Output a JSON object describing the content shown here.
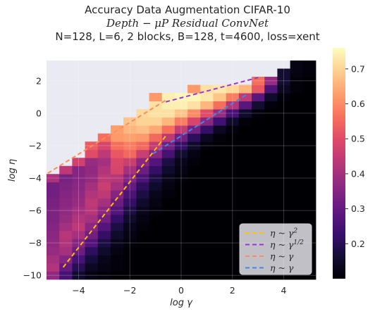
{
  "chart_data": {
    "type": "heatmap",
    "title_lines": [
      "Accuracy Data Augmentation CIFAR-10",
      "Depth − μP Residual ConvNet",
      "N=128, L=6, 2 blocks, B=128, t=4600, loss=xent"
    ],
    "xlabel": "log γ",
    "ylabel": "log η",
    "xlim": [
      -5.25,
      5.25
    ],
    "ylim": [
      -10.25,
      3.25
    ],
    "x_ticks": [
      -4,
      -2,
      0,
      2,
      4
    ],
    "y_ticks": [
      2,
      0,
      -2,
      -4,
      -6,
      -8,
      -10
    ],
    "x_centers": [
      -5.0,
      -4.5,
      -4.0,
      -3.5,
      -3.0,
      -2.5,
      -2.0,
      -1.5,
      -1.0,
      -0.5,
      0.0,
      0.5,
      1.0,
      1.5,
      2.0,
      2.5,
      3.0,
      3.5,
      4.0,
      4.5,
      5.0
    ],
    "y_centers": [
      -10.0,
      -9.5,
      -9.0,
      -8.5,
      -8.0,
      -7.5,
      -7.0,
      -6.5,
      -6.0,
      -5.5,
      -5.0,
      -4.5,
      -4.0,
      -3.5,
      -3.0,
      -2.5,
      -2.0,
      -1.5,
      -1.0,
      -0.5,
      0.0,
      0.5,
      1.0,
      1.5,
      2.0,
      2.5,
      3.0
    ],
    "nan_value": null,
    "values": [
      [
        0.37,
        0.25,
        0.15,
        0.12,
        0.11,
        0.1,
        0.1,
        0.1,
        0.1,
        0.1,
        0.1,
        0.1,
        0.1,
        0.1,
        0.1,
        0.1,
        0.1,
        0.1,
        0.1,
        0.1,
        0.1
      ],
      [
        0.42,
        0.3,
        0.2,
        0.14,
        0.12,
        0.11,
        0.1,
        0.1,
        0.1,
        0.1,
        0.1,
        0.1,
        0.1,
        0.1,
        0.1,
        0.1,
        0.1,
        0.1,
        0.1,
        0.1,
        0.1
      ],
      [
        0.4,
        0.35,
        0.25,
        0.17,
        0.13,
        0.11,
        0.1,
        0.1,
        0.1,
        0.1,
        0.1,
        0.1,
        0.1,
        0.1,
        0.1,
        0.1,
        0.1,
        0.1,
        0.1,
        0.1,
        0.1
      ],
      [
        0.38,
        0.4,
        0.31,
        0.21,
        0.15,
        0.12,
        0.1,
        0.1,
        0.1,
        0.1,
        0.1,
        0.1,
        0.1,
        0.1,
        0.1,
        0.1,
        0.1,
        0.1,
        0.1,
        0.1,
        0.1
      ],
      [
        0.37,
        0.42,
        0.35,
        0.27,
        0.18,
        0.13,
        0.11,
        0.1,
        0.1,
        0.1,
        0.1,
        0.1,
        0.1,
        0.1,
        0.1,
        0.1,
        0.1,
        0.1,
        0.1,
        0.1,
        0.1
      ],
      [
        0.36,
        0.43,
        0.4,
        0.32,
        0.22,
        0.15,
        0.12,
        0.1,
        0.1,
        0.1,
        0.1,
        0.1,
        0.1,
        0.1,
        0.1,
        0.1,
        0.1,
        0.1,
        0.1,
        0.1,
        0.1
      ],
      [
        0.35,
        0.4,
        0.44,
        0.36,
        0.27,
        0.18,
        0.13,
        0.11,
        0.1,
        0.1,
        0.1,
        0.1,
        0.1,
        0.1,
        0.1,
        0.1,
        0.1,
        0.1,
        0.1,
        0.1,
        0.1
      ],
      [
        0.34,
        0.38,
        0.42,
        0.4,
        0.32,
        0.22,
        0.15,
        0.12,
        0.1,
        0.1,
        0.1,
        0.1,
        0.1,
        0.1,
        0.1,
        0.1,
        0.1,
        0.1,
        0.1,
        0.1,
        0.1
      ],
      [
        0.34,
        0.37,
        0.4,
        0.43,
        0.36,
        0.27,
        0.18,
        0.13,
        0.11,
        0.1,
        0.1,
        0.1,
        0.1,
        0.1,
        0.1,
        0.1,
        0.1,
        0.1,
        0.1,
        0.1,
        0.1
      ],
      [
        0.33,
        0.36,
        0.38,
        0.44,
        0.4,
        0.31,
        0.22,
        0.15,
        0.12,
        0.1,
        0.1,
        0.1,
        0.1,
        0.1,
        0.1,
        0.1,
        0.1,
        0.1,
        0.1,
        0.1,
        0.1
      ],
      [
        0.32,
        0.35,
        0.37,
        0.42,
        0.44,
        0.35,
        0.26,
        0.18,
        0.13,
        0.11,
        0.1,
        0.1,
        0.1,
        0.1,
        0.1,
        0.1,
        0.1,
        0.1,
        0.1,
        0.1,
        0.1
      ],
      [
        0.32,
        0.34,
        0.36,
        0.4,
        0.46,
        0.4,
        0.3,
        0.21,
        0.15,
        0.12,
        0.1,
        0.1,
        0.1,
        0.1,
        0.1,
        0.1,
        0.1,
        0.1,
        0.1,
        0.1,
        0.1
      ],
      [
        0.41,
        0.33,
        0.35,
        0.38,
        0.44,
        0.43,
        0.35,
        0.26,
        0.18,
        0.13,
        0.11,
        0.1,
        0.1,
        0.1,
        0.1,
        0.1,
        0.1,
        0.1,
        0.1,
        0.1,
        0.1
      ],
      [
        null,
        0.44,
        0.35,
        0.37,
        0.42,
        0.48,
        0.4,
        0.31,
        0.22,
        0.15,
        0.12,
        0.1,
        0.1,
        0.1,
        0.1,
        0.1,
        0.1,
        0.1,
        0.1,
        0.1,
        0.1
      ],
      [
        null,
        null,
        0.47,
        0.38,
        0.4,
        0.49,
        0.46,
        0.36,
        0.27,
        0.18,
        0.13,
        0.11,
        0.1,
        0.1,
        0.1,
        0.1,
        0.1,
        0.1,
        0.1,
        0.1,
        0.1
      ],
      [
        null,
        null,
        null,
        0.5,
        0.44,
        0.52,
        0.55,
        0.46,
        0.36,
        0.25,
        0.16,
        0.12,
        0.1,
        0.1,
        0.1,
        0.1,
        0.1,
        0.1,
        0.1,
        0.1,
        0.1
      ],
      [
        null,
        null,
        null,
        0.53,
        0.48,
        0.56,
        0.58,
        0.55,
        0.45,
        0.32,
        0.22,
        0.15,
        0.11,
        0.1,
        0.1,
        0.1,
        0.1,
        0.1,
        0.1,
        0.1,
        0.1
      ],
      [
        null,
        null,
        null,
        null,
        0.56,
        0.62,
        0.63,
        0.62,
        0.55,
        0.44,
        0.32,
        0.21,
        0.14,
        0.11,
        0.1,
        0.1,
        0.1,
        0.1,
        0.1,
        0.1,
        0.1
      ],
      [
        null,
        null,
        null,
        null,
        null,
        0.63,
        0.66,
        0.67,
        0.64,
        0.56,
        0.45,
        0.33,
        0.22,
        0.14,
        0.11,
        0.1,
        0.1,
        0.1,
        0.1,
        0.1,
        0.1
      ],
      [
        null,
        null,
        null,
        null,
        null,
        null,
        0.68,
        0.7,
        0.7,
        0.66,
        0.58,
        0.48,
        0.36,
        0.24,
        0.15,
        0.11,
        0.1,
        0.1,
        0.1,
        0.1,
        0.1
      ],
      [
        null,
        null,
        null,
        null,
        null,
        null,
        null,
        0.71,
        0.72,
        0.72,
        0.68,
        0.6,
        0.5,
        0.38,
        0.25,
        0.15,
        0.11,
        0.1,
        0.1,
        0.1,
        0.1
      ],
      [
        null,
        null,
        null,
        null,
        null,
        null,
        null,
        null,
        0.72,
        0.74,
        0.74,
        0.72,
        0.66,
        0.56,
        0.42,
        0.28,
        0.16,
        0.11,
        0.1,
        0.1,
        0.1
      ],
      [
        null,
        null,
        null,
        null,
        null,
        null,
        null,
        null,
        0.62,
        0.74,
        0.75,
        0.75,
        0.73,
        0.68,
        0.58,
        0.44,
        0.28,
        0.15,
        0.11,
        0.1,
        0.1
      ],
      [
        null,
        null,
        null,
        null,
        null,
        null,
        null,
        null,
        null,
        null,
        null,
        0.62,
        0.72,
        0.73,
        0.71,
        0.66,
        0.52,
        0.26,
        0.14,
        0.11,
        0.1
      ],
      [
        null,
        null,
        null,
        null,
        null,
        null,
        null,
        null,
        null,
        null,
        null,
        null,
        null,
        null,
        null,
        null,
        0.56,
        0.38,
        0.16,
        0.11,
        0.1
      ],
      [
        null,
        null,
        null,
        null,
        null,
        null,
        null,
        null,
        null,
        null,
        null,
        null,
        null,
        null,
        null,
        null,
        null,
        null,
        0.16,
        0.12,
        0.11
      ],
      [
        null,
        null,
        null,
        null,
        null,
        null,
        null,
        null,
        null,
        null,
        null,
        null,
        null,
        null,
        null,
        null,
        null,
        null,
        null,
        0.12,
        0.11
      ]
    ],
    "colormap": "magma",
    "colorbar": {
      "min": 0.1,
      "max": 0.76,
      "ticks": [
        0.2,
        0.3,
        0.4,
        0.5,
        0.6,
        0.7
      ]
    },
    "grid": true,
    "lines": [
      {
        "label_base": "η ~ γ",
        "label_exp": "2",
        "color": "#ffc107",
        "x": [
          -4.6,
          -0.6
        ],
        "y": [
          -9.5,
          -1.4
        ]
      },
      {
        "label_base": "η ~ γ",
        "label_exp": "1/2",
        "color": "#a134d6",
        "x": [
          -0.6,
          3.0
        ],
        "y": [
          0.7,
          2.2
        ]
      },
      {
        "label_base": "η ~ γ",
        "label_exp": "",
        "color": "#ff8c5a",
        "x": [
          -5.2,
          -0.6
        ],
        "y": [
          -3.7,
          0.8
        ]
      },
      {
        "label_base": "η ~ γ",
        "label_exp": "",
        "color": "#3b8ce6",
        "x": [
          -1.1,
          2.6
        ],
        "y": [
          -2.5,
          1.2
        ]
      }
    ],
    "legend_placement": "lower-right"
  }
}
